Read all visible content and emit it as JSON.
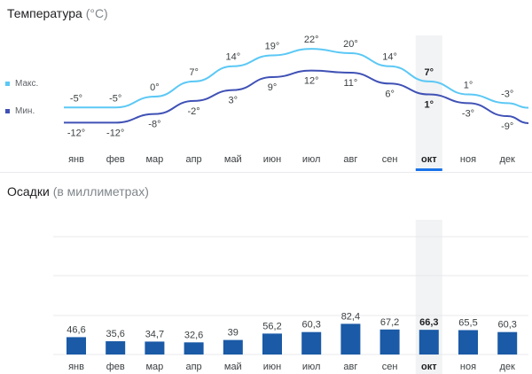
{
  "temperature_section": {
    "title": "Температура",
    "unit": "(°C)",
    "legend_max": "Макс.",
    "legend_min": "Мин."
  },
  "precip_section": {
    "title": "Осадки",
    "unit": "(в миллиметрах)"
  },
  "selected_month": "окт",
  "colors": {
    "max_line": "#5bc8f5",
    "min_line": "#3f51b5",
    "bar": "#1a5aa6",
    "highlight": "#f1f3f4",
    "selected_underline": "#1a73e8",
    "grid": "#e8eaed"
  },
  "chart_data": [
    {
      "type": "line",
      "title": "Температура (°C)",
      "categories": [
        "янв",
        "фев",
        "мар",
        "апр",
        "май",
        "июн",
        "июл",
        "авг",
        "сен",
        "окт",
        "ноя",
        "дек"
      ],
      "series": [
        {
          "name": "Макс.",
          "values": [
            -5,
            -5,
            0,
            7,
            14,
            19,
            22,
            20,
            14,
            7,
            1,
            -3
          ],
          "labels": [
            "-5°",
            "-5°",
            "0°",
            "7°",
            "14°",
            "19°",
            "22°",
            "20°",
            "14°",
            "7°",
            "1°",
            "-3°"
          ]
        },
        {
          "name": "Мин.",
          "values": [
            -12,
            -12,
            -8,
            -2,
            3,
            9,
            12,
            11,
            6,
            1,
            -3,
            -9
          ],
          "labels": [
            "-12°",
            "-12°",
            "-8°",
            "-2°",
            "3°",
            "9°",
            "12°",
            "11°",
            "6°",
            "1°",
            "-3°",
            "-9°"
          ]
        }
      ],
      "grid": false,
      "legend": "left"
    },
    {
      "type": "bar",
      "title": "Осадки (в миллиметрах)",
      "categories": [
        "янв",
        "фев",
        "мар",
        "апр",
        "май",
        "июн",
        "июл",
        "авг",
        "сен",
        "окт",
        "ноя",
        "дек"
      ],
      "values": [
        46.6,
        35.6,
        34.7,
        32.6,
        39,
        56.2,
        60.3,
        82.4,
        67.2,
        66.3,
        65.5,
        60.3
      ],
      "labels": [
        "46,6",
        "35,6",
        "34,7",
        "32,6",
        "39",
        "56,2",
        "60,3",
        "82,4",
        "67,2",
        "66,3",
        "65,5",
        "60,3"
      ],
      "grid": true
    }
  ]
}
